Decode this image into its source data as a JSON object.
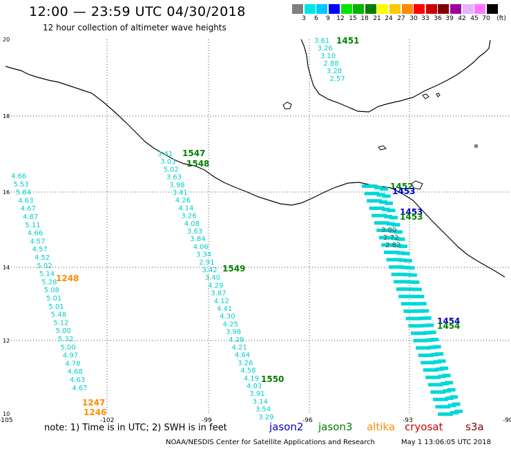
{
  "header": {
    "title": "12:00 — 23:59 UTC 04/30/2018",
    "subtitle": "12 hour collection of altimeter wave heights"
  },
  "legend": {
    "labels": [
      "3",
      "6",
      "9",
      "12",
      "15",
      "18",
      "21",
      "24",
      "27",
      "30",
      "33",
      "36",
      "39",
      "42",
      "45",
      "70"
    ],
    "unit": "(ft)",
    "colors": [
      "#808080",
      "#00e6e6",
      "#00c8ff",
      "#0000ff",
      "#00e600",
      "#00b400",
      "#008000",
      "#ffff00",
      "#ffc800",
      "#ff8c00",
      "#ff0000",
      "#c80000",
      "#800000",
      "#a000a0",
      "#e6b4ff",
      "#ff78ff",
      "#000000"
    ]
  },
  "axes": {
    "x_ticks": [
      "-105",
      "-102",
      "-99",
      "-96",
      "-93",
      "-90"
    ],
    "y_ticks": [
      "20",
      "18",
      "16",
      "14",
      "12",
      "10"
    ]
  },
  "track_labels": [
    {
      "text": "1451",
      "color": "#008000"
    },
    {
      "text": "1547",
      "color": "#008000"
    },
    {
      "text": "1548",
      "color": "#008000"
    },
    {
      "text": "1452",
      "color": "#008000"
    },
    {
      "text": "1453",
      "color": "#0000c8"
    },
    {
      "text": "1453",
      "color": "#0000c8"
    },
    {
      "text": "1453",
      "color": "#008000"
    },
    {
      "text": "1549",
      "color": "#008000"
    },
    {
      "text": "1248",
      "color": "#ff8c00"
    },
    {
      "text": "1454",
      "color": "#0000c8"
    },
    {
      "text": "1454",
      "color": "#008000"
    },
    {
      "text": "1550",
      "color": "#008000"
    },
    {
      "text": "1247",
      "color": "#ff8c00"
    },
    {
      "text": "1246",
      "color": "#ff8c00"
    }
  ],
  "wave_tracks": {
    "track_1451": [
      "3.61",
      "3.26",
      "3.10",
      "2.88",
      "3.28",
      "2.57"
    ],
    "track_1547": [
      "3.41",
      "3.03",
      "5.02",
      "3.63",
      "3.98",
      "3.41",
      "4.26",
      "4.14",
      "3.26",
      "4.08",
      "3.63",
      "3.84",
      "4.06",
      "3.34",
      "2.91",
      "3.42",
      "3.40",
      "4.29",
      "3.87",
      "4.12",
      "4.41",
      "4.30",
      "4.25",
      "3.98",
      "4.29",
      "4.21",
      "4.64",
      "3.26",
      "4.58",
      "4.19",
      "4.03",
      "3.91",
      "3.14",
      "3.54",
      "3.29"
    ],
    "track_1248": [
      "4.66",
      "5.53",
      "5.84",
      "4.63",
      "4.67",
      "4.87",
      "5.11",
      "4.66",
      "4.57",
      "4.57",
      "4.52",
      "5.02",
      "5.14",
      "5.28",
      "5.08",
      "5.01",
      "5.01",
      "5.48",
      "5.12",
      "5.00",
      "5.32",
      "5.00",
      "4.97",
      "4.78",
      "4.68",
      "4.63",
      "4.67"
    ],
    "track_1453_visible": [
      "3.00",
      "2.72",
      "2.82"
    ]
  },
  "footer": {
    "note": "note: 1) Time is in UTC; 2) SWH is in feet",
    "satellites": [
      {
        "name": "jason2",
        "color": "#0000c8"
      },
      {
        "name": "jason3",
        "color": "#008000"
      },
      {
        "name": "altika",
        "color": "#ff8c00"
      },
      {
        "name": "cryosat",
        "color": "#c80000"
      },
      {
        "name": "s3a",
        "color": "#800000"
      }
    ],
    "credit": "NOAA/NESDIS Center for Satellite Applications and Research",
    "timestamp": "May  1 13:06:05 UTC 2018"
  }
}
